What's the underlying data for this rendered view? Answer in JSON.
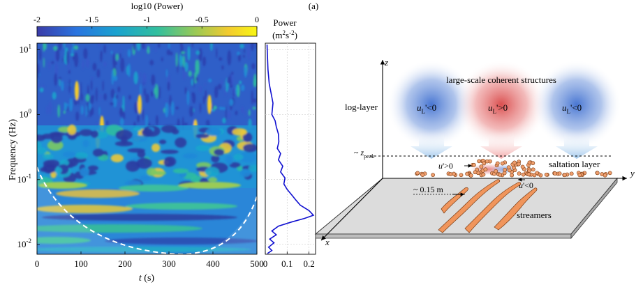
{
  "colorbar": {
    "title": "log10 (Power)",
    "ticks": [
      "-2",
      "-1.5",
      "-1",
      "-0.5",
      "0"
    ],
    "range": [
      -2,
      0
    ],
    "colormap": [
      "#3b3ca8",
      "#2a74df",
      "#1aa2cf",
      "#33bf9d",
      "#9ac955",
      "#f3cb2f",
      "#f8f614"
    ]
  },
  "panel_letter": "(a)",
  "scalogram": {
    "ylabel": "Frequency (Hz)",
    "xlabel_var": "t",
    "xlabel_unit": " (s)",
    "x_ticks": [
      "0",
      "100",
      "200",
      "300",
      "400",
      "500"
    ],
    "x_range": [
      0,
      500
    ],
    "y_ticks_base": [
      "10",
      "10",
      "10",
      "10"
    ],
    "y_ticks_exp": [
      "1",
      "0",
      "-1",
      "-2"
    ],
    "y_range_log10": [
      -2.15,
      1.1
    ]
  },
  "power_panel": {
    "title_line1": "Power",
    "title_line2_pre": "(m",
    "title_sup1": "2",
    "title_mid": "s",
    "title_sup2": "-2",
    "title_post": ")",
    "x_ticks": [
      "0",
      "0.1",
      "0.2"
    ]
  },
  "chart_data": {
    "type": "line",
    "title": "Power (m2s-2)",
    "xlabel": "",
    "ylabel": "Frequency (Hz)",
    "xlim": [
      0,
      0.23
    ],
    "y_scale": "log",
    "ylim": [
      0.007,
      12.6
    ],
    "series": [
      {
        "points": [
          [
            0.008,
            12.0
          ],
          [
            0.01,
            8.0
          ],
          [
            0.012,
            5.0
          ],
          [
            0.018,
            3.0
          ],
          [
            0.028,
            2.0
          ],
          [
            0.035,
            1.5
          ],
          [
            0.03,
            1.0
          ],
          [
            0.045,
            0.8
          ],
          [
            0.05,
            0.65
          ],
          [
            0.06,
            0.5
          ],
          [
            0.062,
            0.38
          ],
          [
            0.055,
            0.3
          ],
          [
            0.07,
            0.25
          ],
          [
            0.06,
            0.2
          ],
          [
            0.08,
            0.16
          ],
          [
            0.07,
            0.13
          ],
          [
            0.09,
            0.105
          ],
          [
            0.085,
            0.085
          ],
          [
            0.1,
            0.07
          ],
          [
            0.12,
            0.058
          ],
          [
            0.14,
            0.048
          ],
          [
            0.16,
            0.04
          ],
          [
            0.2,
            0.033
          ],
          [
            0.22,
            0.028
          ],
          [
            0.18,
            0.025
          ],
          [
            0.12,
            0.022
          ],
          [
            0.06,
            0.019
          ],
          [
            0.03,
            0.016
          ],
          [
            0.05,
            0.014
          ],
          [
            0.02,
            0.012
          ],
          [
            0.04,
            0.0105
          ],
          [
            0.015,
            0.009
          ],
          [
            0.03,
            0.008
          ],
          [
            0.01,
            0.0072
          ]
        ]
      }
    ]
  },
  "schematic": {
    "axis_z": "z",
    "axis_y": "y",
    "axis_x": "x",
    "coherent_title": "large-scale coherent structures",
    "log_layer": "log-layer",
    "uL_labels": [
      {
        "base": "u",
        "sub": "L",
        "rel": "'<0"
      },
      {
        "base": "u",
        "sub": "L",
        "rel": "'>0"
      },
      {
        "base": "u",
        "sub": "L",
        "rel": "'<0"
      }
    ],
    "zpeak_prefix": "~ ",
    "zpeak_var": "z",
    "zpeak_sub": "peak",
    "saltation_layer": "saltation layer",
    "u_pos": {
      "var": "u",
      "rel": "'>0"
    },
    "u_neg": {
      "var": "u",
      "rel": "'<0"
    },
    "spacing": "~ 0.15 m",
    "streamers": "streamers",
    "colors": {
      "blob_blue": "#3f6fd0",
      "blob_red": "#d84646",
      "arrow_blue": "#9dc6ec",
      "arrow_red": "#f2a3a3",
      "grain": "#ef9e6d",
      "plate": "#dcdcdc",
      "streamer": "#f0955c",
      "curve": "#1010d0"
    }
  }
}
